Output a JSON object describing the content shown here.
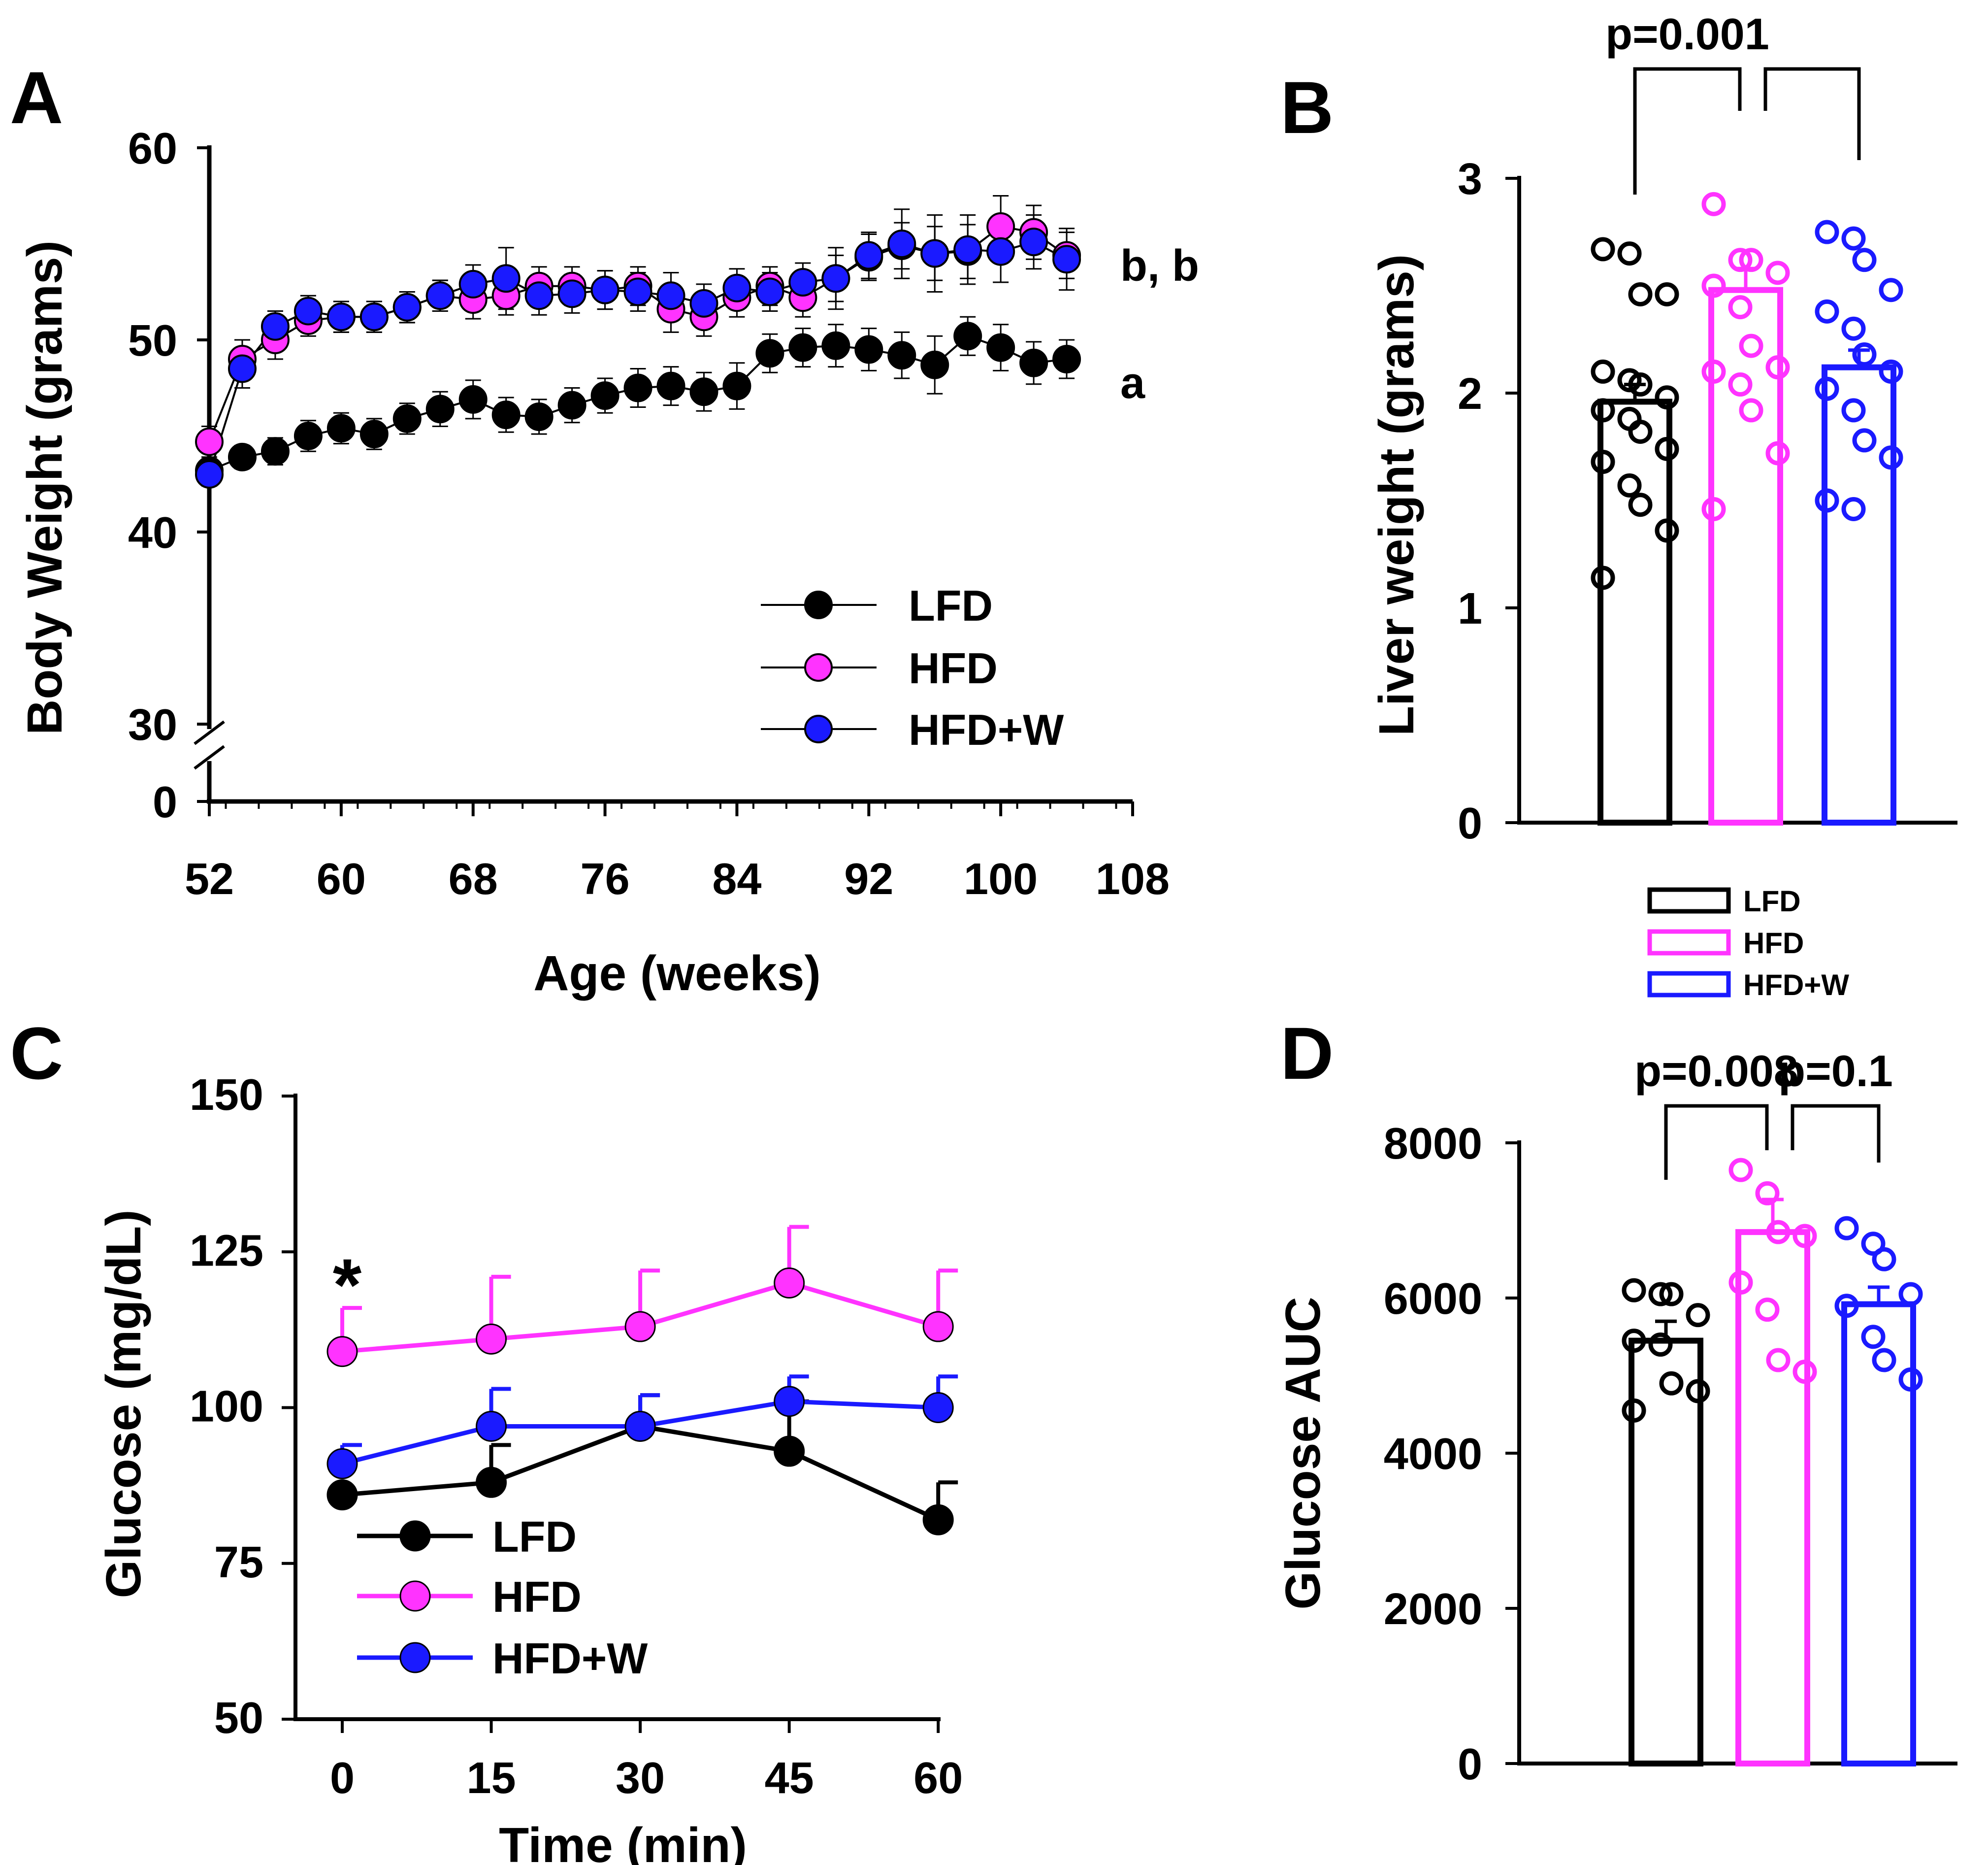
{
  "chart_data": [
    {
      "panel": "A",
      "type": "line",
      "xlabel": "Age (weeks)",
      "ylabel": "Body Weight (grams)",
      "xlim": [
        52,
        108
      ],
      "ylim": [
        30,
        60
      ],
      "axis_break": true,
      "xticks": [
        "52",
        "60",
        "68",
        "76",
        "84",
        "92",
        "100",
        "108"
      ],
      "yticks": [
        "0",
        "30",
        "40",
        "50",
        "60"
      ],
      "x": [
        52,
        54,
        56,
        58,
        60,
        62,
        64,
        66,
        68,
        70,
        72,
        74,
        76,
        78,
        80,
        82,
        84,
        86,
        88,
        90,
        92,
        94,
        96,
        98,
        100,
        102,
        104
      ],
      "series": [
        {
          "name": "LFD",
          "color": "#000000",
          "values": [
            43.2,
            43.9,
            44.2,
            45.0,
            45.4,
            45.1,
            45.9,
            46.4,
            46.9,
            46.1,
            46.0,
            46.6,
            47.1,
            47.5,
            47.6,
            47.3,
            47.6,
            49.3,
            49.6,
            49.7,
            49.5,
            49.2,
            48.7,
            50.2,
            49.6,
            48.8,
            49.0
          ],
          "errors": [
            0.6,
            0.6,
            0.7,
            0.8,
            0.8,
            0.8,
            0.8,
            0.9,
            1.0,
            0.9,
            0.9,
            0.9,
            0.9,
            1.0,
            1.0,
            1.0,
            1.2,
            1.0,
            1.0,
            1.1,
            1.1,
            1.2,
            1.5,
            1.0,
            1.2,
            1.1,
            1.0
          ]
        },
        {
          "name": "HFD",
          "color": "#ff33ff",
          "values": [
            44.7,
            49.0,
            50.0,
            51.0,
            51.2,
            51.2,
            51.7,
            52.3,
            52.1,
            52.3,
            52.8,
            52.8,
            52.6,
            52.8,
            51.6,
            51.2,
            52.2,
            52.8,
            52.2,
            53.2,
            54.3,
            54.9,
            54.5,
            54.6,
            55.9,
            55.6,
            54.4
          ],
          "errors": [
            0.8,
            1.0,
            1.0,
            0.8,
            0.8,
            0.8,
            0.8,
            0.8,
            1.0,
            1.0,
            1.0,
            1.0,
            1.0,
            1.0,
            1.2,
            1.0,
            1.0,
            1.0,
            1.0,
            1.2,
            1.2,
            1.2,
            1.4,
            1.4,
            1.6,
            1.4,
            1.2
          ]
        },
        {
          "name": "HFD+W",
          "color": "#1a1aff",
          "values": [
            43.0,
            48.5,
            50.7,
            51.5,
            51.2,
            51.2,
            51.7,
            52.3,
            52.9,
            53.2,
            52.3,
            52.4,
            52.6,
            52.5,
            52.3,
            51.9,
            52.7,
            52.5,
            53.0,
            53.2,
            54.4,
            55.0,
            54.5,
            54.7,
            54.6,
            55.1,
            54.2
          ],
          "errors": [
            0.6,
            1.0,
            0.8,
            0.8,
            0.8,
            0.8,
            0.8,
            0.8,
            1.0,
            1.6,
            1.0,
            1.0,
            1.0,
            1.0,
            1.2,
            1.0,
            1.0,
            1.0,
            1.0,
            1.6,
            1.2,
            1.8,
            2.0,
            1.8,
            1.6,
            1.4,
            1.6
          ]
        }
      ],
      "annotations": [
        "b, b",
        "a"
      ],
      "legend": [
        "LFD",
        "HFD",
        "HFD+W"
      ]
    },
    {
      "panel": "B",
      "type": "bar",
      "ylabel": "Liver weight (grams)",
      "ylim": [
        0,
        3
      ],
      "yticks": [
        "0",
        "1",
        "2",
        "3"
      ],
      "categories": [
        "LFD",
        "HFD",
        "HFD+W"
      ],
      "values": [
        1.96,
        2.48,
        2.12
      ],
      "errors": [
        0.08,
        0.1,
        0.08
      ],
      "colors": [
        "#000000",
        "#ff33ff",
        "#1a1aff"
      ],
      "points": [
        [
          2.67,
          2.65,
          2.46,
          2.46,
          2.1,
          2.06,
          2.04,
          1.98,
          1.92,
          1.88,
          1.82,
          1.74,
          1.68,
          1.57,
          1.48,
          1.36,
          1.14
        ],
        [
          2.88,
          2.62,
          2.62,
          2.56,
          2.5,
          2.4,
          2.22,
          2.12,
          2.1,
          2.04,
          1.92,
          1.72,
          1.46
        ],
        [
          2.75,
          2.72,
          2.62,
          2.48,
          2.38,
          2.3,
          2.18,
          2.1,
          2.02,
          1.92,
          1.78,
          1.7,
          1.5,
          1.46
        ]
      ],
      "comparisons": [
        {
          "label": "p=0.001",
          "pair": [
            "LFD",
            "HFD"
          ]
        },
        {
          "label": "",
          "pair": [
            "HFD",
            "HFD+W"
          ]
        }
      ],
      "legend": [
        "LFD",
        "HFD",
        "HFD+W"
      ]
    },
    {
      "panel": "C",
      "type": "line",
      "xlabel": "Time (min)",
      "ylabel": "Glucose (mg/dL)",
      "xlim": [
        -7,
        60
      ],
      "ylim": [
        50,
        150
      ],
      "xticks": [
        "0",
        "15",
        "30",
        "45",
        "60"
      ],
      "yticks": [
        "50",
        "75",
        "100",
        "125",
        "150"
      ],
      "x": [
        0,
        15,
        30,
        45,
        60
      ],
      "series": [
        {
          "name": "LFD",
          "color": "#000000",
          "values": [
            86,
            88,
            97,
            93,
            82
          ],
          "errors": [
            0,
            6,
            5,
            8,
            6
          ]
        },
        {
          "name": "HFD",
          "color": "#ff33ff",
          "values": [
            109,
            111,
            113,
            120,
            113
          ],
          "errors": [
            7,
            10,
            9,
            9,
            9
          ]
        },
        {
          "name": "HFD+W",
          "color": "#1a1aff",
          "values": [
            91,
            97,
            97,
            101,
            100
          ],
          "errors": [
            3,
            6,
            5,
            4,
            5
          ]
        }
      ],
      "annotations": [
        "*"
      ],
      "legend": [
        "LFD",
        "HFD",
        "HFD+W"
      ]
    },
    {
      "panel": "D",
      "type": "bar",
      "ylabel": "Glucose AUC",
      "ylim": [
        0,
        8000
      ],
      "yticks": [
        "0",
        "2000",
        "4000",
        "6000",
        "8000"
      ],
      "categories": [
        "LFD",
        "HFD",
        "HFD+W"
      ],
      "values": [
        5450,
        6850,
        5920
      ],
      "errors": [
        250,
        420,
        220
      ],
      "colors": [
        "#000000",
        "#ff33ff",
        "#1a1aff"
      ],
      "points": [
        [
          6100,
          6050,
          6050,
          5780,
          5450,
          5400,
          4900,
          4800,
          4550
        ],
        [
          7650,
          7350,
          6850,
          6800,
          6200,
          5850,
          5200,
          5050
        ],
        [
          6900,
          6700,
          6500,
          6050,
          5900,
          5500,
          5200,
          4950
        ]
      ],
      "comparisons": [
        {
          "label": "p=0.008",
          "pair": [
            "LFD",
            "HFD"
          ]
        },
        {
          "label": "p=0.1",
          "pair": [
            "HFD",
            "HFD+W"
          ]
        }
      ]
    }
  ],
  "panel_labels": [
    "A",
    "B",
    "C",
    "D"
  ]
}
